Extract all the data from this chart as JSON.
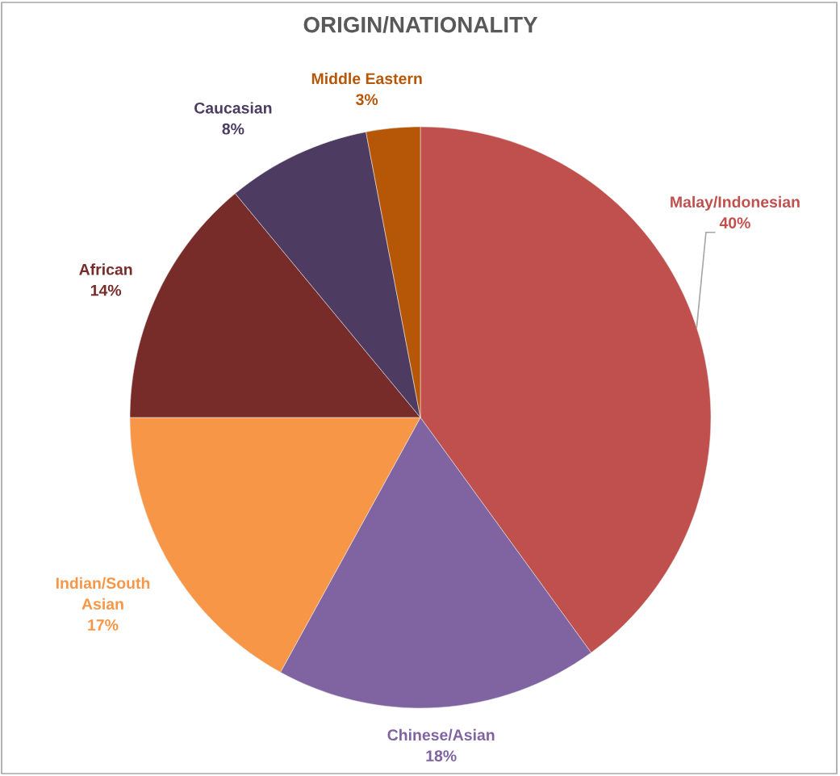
{
  "chart_data": {
    "type": "pie",
    "title": "ORIGIN/NATIONALITY",
    "categories": [
      "Malay/Indonesian",
      "Chinese/Asian",
      "Indian/South Asian",
      "African",
      "Caucasian",
      "Middle Eastern"
    ],
    "values": [
      40,
      18,
      17,
      14,
      8,
      3
    ],
    "colors": [
      "#c0504d",
      "#8064a2",
      "#f79646",
      "#772c2a",
      "#4d3b62",
      "#b65708"
    ],
    "value_labels": [
      "40%",
      "18%",
      "17%",
      "14%",
      "8%",
      "3%"
    ]
  }
}
